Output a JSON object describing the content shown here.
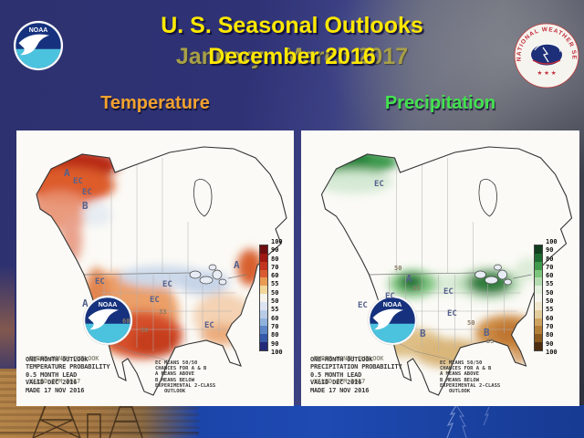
{
  "slide": {
    "title": "U. S. Seasonal Outlooks",
    "subtitle_front": "December 2016",
    "subtitle_back": "January - March 2017",
    "section_left": "Temperature",
    "section_right": "Precipitation"
  },
  "colors": {
    "title_yellow": "#ffe800",
    "subtitle_ghost": "#a89f48",
    "temperature_label": "#f2a22e",
    "precipitation_label": "#43e24e",
    "temp_above": "#d5502a",
    "temp_below": "#8fb2dc",
    "precip_above": "#2f7d3d",
    "precip_below": "#c0812f"
  },
  "noaa_logo": {
    "text": "NOAA"
  },
  "nws_logo": {
    "ring_text": "NATIONAL WEATHER SERVICE",
    "stars": "★ ★ ★"
  },
  "colorbar": {
    "labels": [
      "100",
      "90",
      "80",
      "70",
      "60",
      "55",
      "50",
      "50",
      "55",
      "60",
      "70",
      "80",
      "90",
      "100"
    ],
    "temperature_colors": [
      "#6e0e10",
      "#a01814",
      "#c33420",
      "#d95c30",
      "#e99b52",
      "#f2d79a",
      "#f5f3ea",
      "#dbe4f0",
      "#b8cce6",
      "#8fb2dc",
      "#5c86c6",
      "#3558a8",
      "#232878"
    ],
    "precipitation_colors": [
      "#123f1e",
      "#1e6b30",
      "#3f9b4a",
      "#7cc47c",
      "#b4dcb0",
      "#e2efdc",
      "#f5f5ee",
      "#f0e6cc",
      "#e3cc9c",
      "#cfa463",
      "#b47f38",
      "#8a5a20",
      "#4e2e10"
    ]
  },
  "legend": {
    "lines": [
      "EC MEANS 50/50",
      "CHANCES FOR A & B",
      "A MEANS ABOVE",
      "B MEANS BELOW",
      "EXPERIMENTAL 2-CLASS",
      "OUTLOOK"
    ]
  },
  "temperature_map": {
    "caption": {
      "line1_front": "ONE-MONTH OUTLOOK",
      "line1_back": "THREE-MONTH OUTLOOK",
      "line2": "TEMPERATURE PROBABILITY",
      "line3": "0.5 MONTH LEAD",
      "line4_front": "VALID DEC 2016",
      "line4_back": "VALID JFM 2017",
      "line5": "MADE 17 NOV 2016"
    },
    "region_labels": [
      "A",
      "EC",
      "EC",
      "B",
      "EC",
      "A",
      "EC",
      "EC",
      "A",
      "EC"
    ],
    "contour_labels": [
      "60",
      "50",
      "33"
    ]
  },
  "precipitation_map": {
    "caption": {
      "line1_front": "ONE-MONTH OUTLOOK",
      "line1_back": "THREE-MONTH OUTLOOK",
      "line2": "PRECIPITATION PROBABILITY",
      "line3": "0.5 MONTH LEAD",
      "line4_front": "VALID DEC 2016",
      "line4_back": "VALID JFM 2017",
      "line5": "MADE 17 NOV 2016"
    },
    "region_labels": [
      "EC",
      "A",
      "EC",
      "EC",
      "EC",
      "EC",
      "B",
      "B"
    ],
    "contour_labels": [
      "50",
      "33",
      "50",
      "33"
    ]
  }
}
